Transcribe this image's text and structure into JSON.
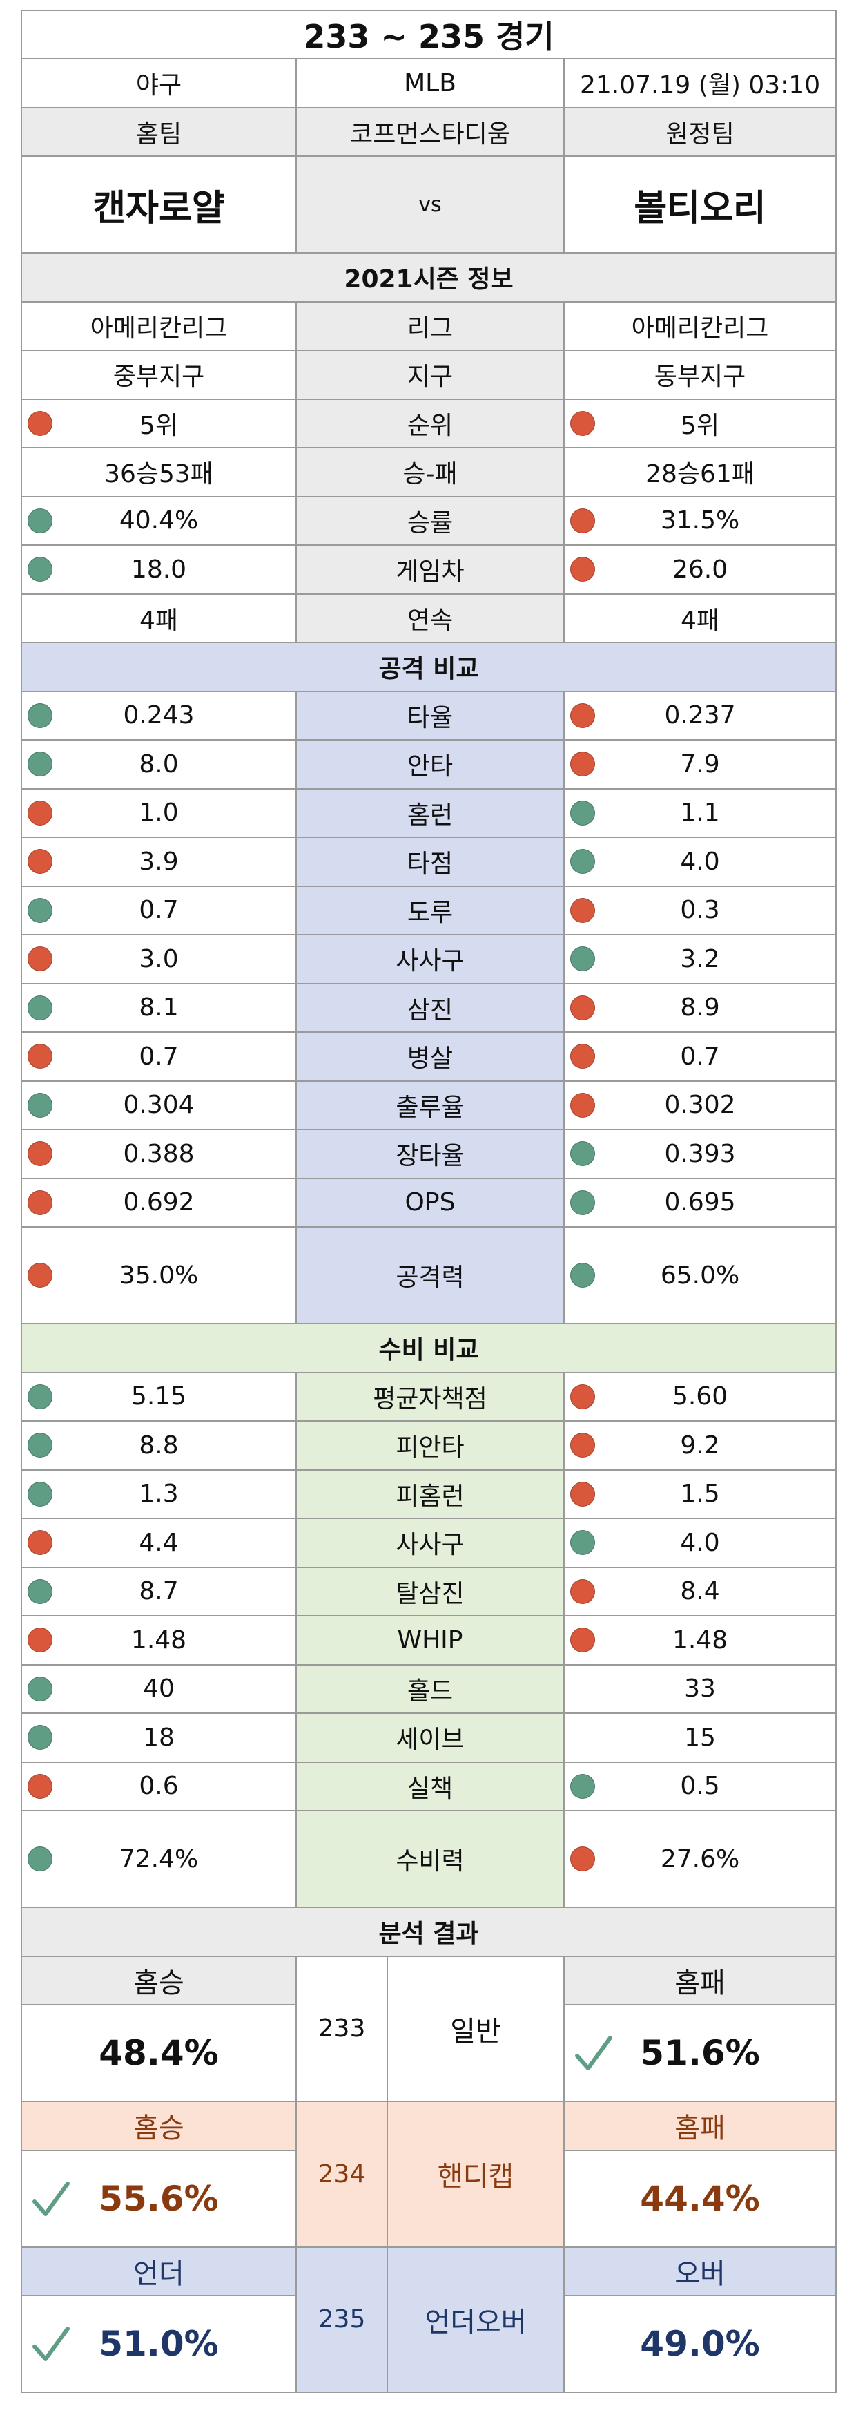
{
  "header": {
    "title": "233 ~ 235 경기",
    "sport": "야구",
    "league": "MLB",
    "datetime": "21.07.19 (월) 03:10",
    "home_label": "홈팀",
    "stadium": "코프먼스타디움",
    "away_label": "원정팀",
    "home_team": "캔자로얄",
    "vs": "vs",
    "away_team": "볼티오리"
  },
  "season": {
    "title": "2021시즌 정보",
    "rows": [
      {
        "label": "리그",
        "home": "아메리칸리그",
        "away": "아메리칸리그",
        "home_dot": "",
        "away_dot": ""
      },
      {
        "label": "지구",
        "home": "중부지구",
        "away": "동부지구",
        "home_dot": "",
        "away_dot": ""
      },
      {
        "label": "순위",
        "home": "5위",
        "away": "5위",
        "home_dot": "red",
        "away_dot": "red"
      },
      {
        "label": "승-패",
        "home": "36승53패",
        "away": "28승61패",
        "home_dot": "",
        "away_dot": ""
      },
      {
        "label": "승률",
        "home": "40.4%",
        "away": "31.5%",
        "home_dot": "green",
        "away_dot": "red"
      },
      {
        "label": "게임차",
        "home": "18.0",
        "away": "26.0",
        "home_dot": "green",
        "away_dot": "red"
      },
      {
        "label": "연속",
        "home": "4패",
        "away": "4패",
        "home_dot": "",
        "away_dot": ""
      }
    ]
  },
  "offense": {
    "title": "공격 비교",
    "rows": [
      {
        "label": "타율",
        "home": "0.243",
        "away": "0.237",
        "home_dot": "green",
        "away_dot": "red"
      },
      {
        "label": "안타",
        "home": "8.0",
        "away": "7.9",
        "home_dot": "green",
        "away_dot": "red"
      },
      {
        "label": "홈런",
        "home": "1.0",
        "away": "1.1",
        "home_dot": "red",
        "away_dot": "green"
      },
      {
        "label": "타점",
        "home": "3.9",
        "away": "4.0",
        "home_dot": "red",
        "away_dot": "green"
      },
      {
        "label": "도루",
        "home": "0.7",
        "away": "0.3",
        "home_dot": "green",
        "away_dot": "red"
      },
      {
        "label": "사사구",
        "home": "3.0",
        "away": "3.2",
        "home_dot": "red",
        "away_dot": "green"
      },
      {
        "label": "삼진",
        "home": "8.1",
        "away": "8.9",
        "home_dot": "green",
        "away_dot": "red"
      },
      {
        "label": "병살",
        "home": "0.7",
        "away": "0.7",
        "home_dot": "red",
        "away_dot": "red"
      },
      {
        "label": "출루율",
        "home": "0.304",
        "away": "0.302",
        "home_dot": "green",
        "away_dot": "red"
      },
      {
        "label": "장타율",
        "home": "0.388",
        "away": "0.393",
        "home_dot": "red",
        "away_dot": "green"
      },
      {
        "label": "OPS",
        "home": "0.692",
        "away": "0.695",
        "home_dot": "red",
        "away_dot": "green"
      }
    ],
    "power": {
      "label": "공격력",
      "home": "35.0%",
      "away": "65.0%",
      "home_dot": "red",
      "away_dot": "green"
    }
  },
  "defense": {
    "title": "수비 비교",
    "rows": [
      {
        "label": "평균자책점",
        "home": "5.15",
        "away": "5.60",
        "home_dot": "green",
        "away_dot": "red"
      },
      {
        "label": "피안타",
        "home": "8.8",
        "away": "9.2",
        "home_dot": "green",
        "away_dot": "red"
      },
      {
        "label": "피홈런",
        "home": "1.3",
        "away": "1.5",
        "home_dot": "green",
        "away_dot": "red"
      },
      {
        "label": "사사구",
        "home": "4.4",
        "away": "4.0",
        "home_dot": "red",
        "away_dot": "green"
      },
      {
        "label": "탈삼진",
        "home": "8.7",
        "away": "8.4",
        "home_dot": "green",
        "away_dot": "red"
      },
      {
        "label": "WHIP",
        "home": "1.48",
        "away": "1.48",
        "home_dot": "red",
        "away_dot": "red"
      },
      {
        "label": "홀드",
        "home": "40",
        "away": "33",
        "home_dot": "green",
        "away_dot": ""
      },
      {
        "label": "세이브",
        "home": "18",
        "away": "15",
        "home_dot": "green",
        "away_dot": ""
      },
      {
        "label": "실책",
        "home": "0.6",
        "away": "0.5",
        "home_dot": "red",
        "away_dot": "green"
      }
    ],
    "power": {
      "label": "수비력",
      "home": "72.4%",
      "away": "27.6%",
      "home_dot": "green",
      "away_dot": "red"
    }
  },
  "analysis": {
    "title": "분석 결과",
    "normal": {
      "game": "233",
      "type": "일반",
      "home_label": "홈승",
      "home_pct": "48.4%",
      "away_label": "홈패",
      "away_pct": "51.6%",
      "pick": "away"
    },
    "handicap": {
      "game": "234",
      "type": "핸디캡",
      "home_label": "홈승",
      "home_pct": "55.6%",
      "away_label": "홈패",
      "away_pct": "44.4%",
      "pick": "home"
    },
    "underover": {
      "game": "235",
      "type": "언더오버",
      "home_label": "언더",
      "home_pct": "51.0%",
      "away_label": "오버",
      "away_pct": "49.0%",
      "pick": "home"
    }
  },
  "colors": {
    "red_dot": "#d9573a",
    "green_dot": "#5f9e84",
    "check": "#5f9e84",
    "handicap_text": "#8a3a0f",
    "underover_text": "#1f3768"
  }
}
